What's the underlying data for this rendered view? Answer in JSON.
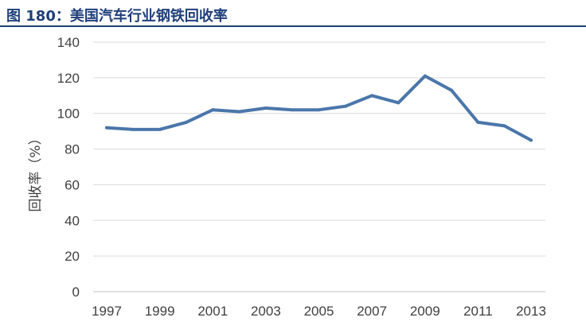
{
  "header": {
    "figure_title": "图 180：美国汽车行业钢铁回收率"
  },
  "colors": {
    "header_blue": "#1f3f7a",
    "series_line": "#4a76aa",
    "grid": "#d9d9d9",
    "tick_text": "#404040"
  },
  "chart_data": {
    "type": "line",
    "title": "美国汽车行业钢铁回收率",
    "xlabel": "",
    "ylabel": "回收率（%）",
    "x": [
      1997,
      1998,
      1999,
      2000,
      2001,
      2002,
      2003,
      2004,
      2005,
      2006,
      2007,
      2008,
      2009,
      2010,
      2011,
      2012,
      2013
    ],
    "x_tick_labels": [
      "1997",
      "1999",
      "2001",
      "2003",
      "2005",
      "2007",
      "2009",
      "2011",
      "2013"
    ],
    "y_tick_labels": [
      "0",
      "20",
      "40",
      "60",
      "80",
      "100",
      "120",
      "140"
    ],
    "series": [
      {
        "values": [
          92,
          91,
          91,
          95,
          102,
          101,
          103,
          102,
          102,
          104,
          110,
          106,
          121,
          113,
          95,
          93,
          85
        ]
      }
    ],
    "ylim": [
      0,
      140
    ],
    "grid": true,
    "legend": "none"
  }
}
